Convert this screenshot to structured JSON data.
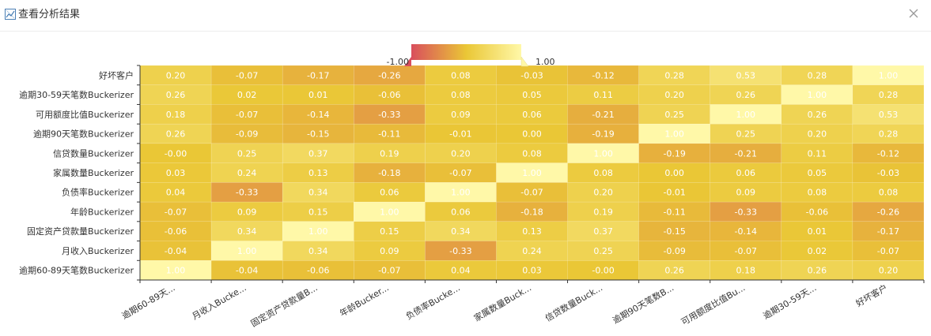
{
  "dialog": {
    "title": "查看分析结果",
    "header_icon": "chart-icon",
    "close_icon": "close-icon"
  },
  "chart_data": {
    "type": "heatmap",
    "x_categories": [
      "逾期60-89天...",
      "月收入Bucke...",
      "固定资产贷款量B...",
      "年龄Bucker...",
      "负债率Bucke...",
      "家属数量Buck...",
      "信贷数量Buck...",
      "逾期90天笔数B...",
      "可用额度比值Bu...",
      "逾期30-59天...",
      "好坏客户"
    ],
    "y_categories": [
      "好坏客户",
      "逾期30-59天笔数Buckerizer",
      "可用额度比值Buckerizer",
      "逾期90天笔数Buckerizer",
      "信贷数量Buckerizer",
      "家属数量Buckerizer",
      "负债率Buckerizer",
      "年龄Buckerizer",
      "固定资产贷款量Buckerizer",
      "月收入Buckerizer",
      "逾期60-89天笔数Buckerizer"
    ],
    "values": [
      [
        "0.20",
        "-0.07",
        "-0.17",
        "-0.26",
        "0.08",
        "-0.03",
        "-0.12",
        "0.28",
        "0.53",
        "0.28",
        "1.00"
      ],
      [
        "0.26",
        "0.02",
        "0.01",
        "-0.06",
        "0.08",
        "0.05",
        "0.11",
        "0.20",
        "0.26",
        "1.00",
        "0.28"
      ],
      [
        "0.18",
        "-0.07",
        "-0.14",
        "-0.33",
        "0.09",
        "0.06",
        "-0.21",
        "0.25",
        "1.00",
        "0.26",
        "0.53"
      ],
      [
        "0.26",
        "-0.09",
        "-0.15",
        "-0.11",
        "-0.01",
        "0.00",
        "-0.19",
        "1.00",
        "0.25",
        "0.20",
        "0.28"
      ],
      [
        "-0.00",
        "0.25",
        "0.37",
        "0.19",
        "0.20",
        "0.08",
        "1.00",
        "-0.19",
        "-0.21",
        "0.11",
        "-0.12"
      ],
      [
        "0.03",
        "0.24",
        "0.13",
        "-0.18",
        "-0.07",
        "1.00",
        "0.08",
        "0.00",
        "0.06",
        "0.05",
        "-0.03"
      ],
      [
        "0.04",
        "-0.33",
        "0.34",
        "0.06",
        "1.00",
        "-0.07",
        "0.20",
        "-0.01",
        "0.09",
        "0.08",
        "0.08"
      ],
      [
        "-0.07",
        "0.09",
        "0.15",
        "1.00",
        "0.06",
        "-0.18",
        "0.19",
        "-0.11",
        "-0.33",
        "-0.06",
        "-0.26"
      ],
      [
        "-0.06",
        "0.34",
        "1.00",
        "0.15",
        "0.34",
        "0.13",
        "0.37",
        "-0.15",
        "-0.14",
        "0.01",
        "-0.17"
      ],
      [
        "-0.04",
        "1.00",
        "0.34",
        "0.09",
        "-0.33",
        "0.24",
        "0.25",
        "-0.09",
        "-0.07",
        "0.02",
        "-0.07"
      ],
      [
        "1.00",
        "-0.04",
        "-0.06",
        "-0.07",
        "0.04",
        "0.03",
        "-0.00",
        "0.26",
        "0.18",
        "0.26",
        "0.20"
      ]
    ],
    "visual_map": {
      "min": -1,
      "max": 1,
      "min_label": "-1.00",
      "max_label": "1.00",
      "colors": [
        "#d94e5d",
        "#eac736",
        "#fff8a8"
      ]
    }
  }
}
